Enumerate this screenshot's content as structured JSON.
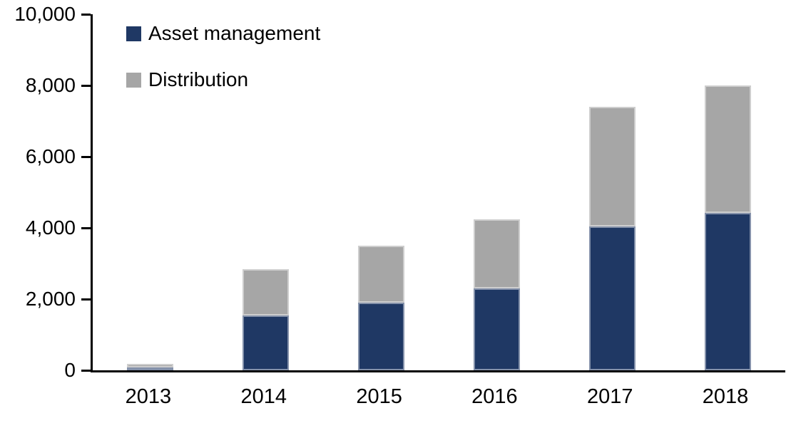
{
  "chart_data": {
    "type": "bar",
    "stacked": true,
    "title": "",
    "xlabel": "",
    "ylabel": "",
    "categories": [
      "2013",
      "2014",
      "2015",
      "2016",
      "2017",
      "2018"
    ],
    "series": [
      {
        "name": "Asset management",
        "color": "#1F3864",
        "values": [
          80,
          1550,
          1900,
          2300,
          4050,
          4420
        ]
      },
      {
        "name": "Distribution",
        "color": "#A6A6A6",
        "values": [
          100,
          1300,
          1600,
          1950,
          3350,
          3580
        ]
      }
    ],
    "totals": [
      180,
      2850,
      3500,
      4250,
      7400,
      8000
    ],
    "ylim": [
      0,
      10000
    ],
    "ytick_interval": 2000,
    "ytick_labels": [
      "0",
      "2,000",
      "4,000",
      "6,000",
      "8,000",
      "10,000"
    ],
    "legend_position": "top-left",
    "grid": false,
    "axis_color": "#000000"
  }
}
